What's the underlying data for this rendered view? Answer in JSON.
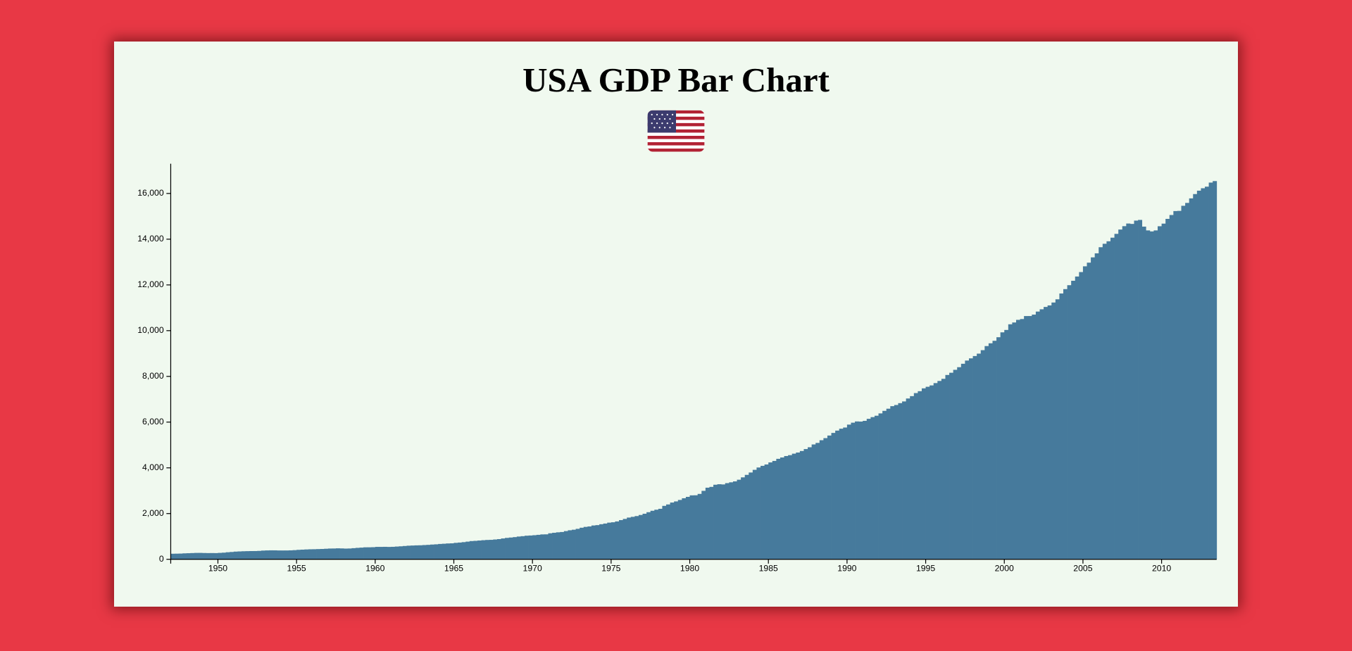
{
  "chart_data": {
    "type": "bar",
    "title": "USA GDP Bar Chart",
    "color": "#467a9c",
    "xlim": [
      1947,
      2013.5
    ],
    "xticks": [
      1950,
      1955,
      1960,
      1965,
      1970,
      1975,
      1980,
      1985,
      1990,
      1995,
      2000,
      2005,
      2010
    ],
    "ylim": [
      0,
      17300
    ],
    "yticks": [
      0,
      {
        "value": 2000,
        "label": "2,000"
      },
      {
        "value": 4000,
        "label": "4,000"
      },
      {
        "value": 6000,
        "label": "6,000"
      },
      {
        "value": 8000,
        "label": "8,000"
      },
      {
        "value": 10000,
        "label": "10,000"
      },
      {
        "value": 12000,
        "label": "12,000"
      },
      {
        "value": 14000,
        "label": "14,000"
      },
      {
        "value": 16000,
        "label": "16,000"
      }
    ],
    "x": [
      1947,
      1947.25,
      1947.5,
      1947.75,
      1948,
      1948.25,
      1948.5,
      1948.75,
      1949,
      1949.25,
      1949.5,
      1949.75,
      1950,
      1950.25,
      1950.5,
      1950.75,
      1951,
      1951.25,
      1951.5,
      1951.75,
      1952,
      1952.25,
      1952.5,
      1952.75,
      1953,
      1953.25,
      1953.5,
      1953.75,
      1954,
      1954.25,
      1954.5,
      1954.75,
      1955,
      1955.25,
      1955.5,
      1955.75,
      1956,
      1956.25,
      1956.5,
      1956.75,
      1957,
      1957.25,
      1957.5,
      1957.75,
      1958,
      1958.25,
      1958.5,
      1958.75,
      1959,
      1959.25,
      1959.5,
      1959.75,
      1960,
      1960.25,
      1960.5,
      1960.75,
      1961,
      1961.25,
      1961.5,
      1961.75,
      1962,
      1962.25,
      1962.5,
      1962.75,
      1963,
      1963.25,
      1963.5,
      1963.75,
      1964,
      1964.25,
      1964.5,
      1964.75,
      1965,
      1965.25,
      1965.5,
      1965.75,
      1966,
      1966.25,
      1966.5,
      1966.75,
      1967,
      1967.25,
      1967.5,
      1967.75,
      1968,
      1968.25,
      1968.5,
      1968.75,
      1969,
      1969.25,
      1969.5,
      1969.75,
      1970,
      1970.25,
      1970.5,
      1970.75,
      1971,
      1971.25,
      1971.5,
      1971.75,
      1972,
      1972.25,
      1972.5,
      1972.75,
      1973,
      1973.25,
      1973.5,
      1973.75,
      1974,
      1974.25,
      1974.5,
      1974.75,
      1975,
      1975.25,
      1975.5,
      1975.75,
      1976,
      1976.25,
      1976.5,
      1976.75,
      1977,
      1977.25,
      1977.5,
      1977.75,
      1978,
      1978.25,
      1978.5,
      1978.75,
      1979,
      1979.25,
      1979.5,
      1979.75,
      1980,
      1980.25,
      1980.5,
      1980.75,
      1981,
      1981.25,
      1981.5,
      1981.75,
      1982,
      1982.25,
      1982.5,
      1982.75,
      1983,
      1983.25,
      1983.5,
      1983.75,
      1984,
      1984.25,
      1984.5,
      1984.75,
      1985,
      1985.25,
      1985.5,
      1985.75,
      1986,
      1986.25,
      1986.5,
      1986.75,
      1987,
      1987.25,
      1987.5,
      1987.75,
      1988,
      1988.25,
      1988.5,
      1988.75,
      1989,
      1989.25,
      1989.5,
      1989.75,
      1990,
      1990.25,
      1990.5,
      1990.75,
      1991,
      1991.25,
      1991.5,
      1991.75,
      1992,
      1992.25,
      1992.5,
      1992.75,
      1993,
      1993.25,
      1993.5,
      1993.75,
      1994,
      1994.25,
      1994.5,
      1994.75,
      1995,
      1995.25,
      1995.5,
      1995.75,
      1996,
      1996.25,
      1996.5,
      1996.75,
      1997,
      1997.25,
      1997.5,
      1997.75,
      1998,
      1998.25,
      1998.5,
      1998.75,
      1999,
      1999.25,
      1999.5,
      1999.75,
      2000,
      2000.25,
      2000.5,
      2000.75,
      2001,
      2001.25,
      2001.5,
      2001.75,
      2002,
      2002.25,
      2002.5,
      2002.75,
      2003,
      2003.25,
      2003.5,
      2003.75,
      2004,
      2004.25,
      2004.5,
      2004.75,
      2005,
      2005.25,
      2005.5,
      2005.75,
      2006,
      2006.25,
      2006.5,
      2006.75,
      2007,
      2007.25,
      2007.5,
      2007.75,
      2008,
      2008.25,
      2008.5,
      2008.75,
      2009,
      2009.25,
      2009.5,
      2009.75,
      2010,
      2010.25,
      2010.5,
      2010.75,
      2011,
      2011.25,
      2011.5,
      2011.75,
      2012,
      2012.25,
      2012.5,
      2012.75,
      2013,
      2013.25
    ],
    "values": [
      243.1,
      246.3,
      250.1,
      260.3,
      266.2,
      272.9,
      279.5,
      280.7,
      275.4,
      271.7,
      273.3,
      271.0,
      281.2,
      290.7,
      308.5,
      320.3,
      336.4,
      344.5,
      351.8,
      356.6,
      360.2,
      361.4,
      368.1,
      381.2,
      388.5,
      392.3,
      391.7,
      386.5,
      385.9,
      386.7,
      391.6,
      400.3,
      413.8,
      422.2,
      430.9,
      437.8,
      440.5,
      446.8,
      452.0,
      461.3,
      470.6,
      472.8,
      480.3,
      475.7,
      468.4,
      472.8,
      486.7,
      500.4,
      511.1,
      524.2,
      525.2,
      529.3,
      543.3,
      542.7,
      546.0,
      541.1,
      545.9,
      557.4,
      568.2,
      581.6,
      595.2,
      602.6,
      609.6,
      613.1,
      622.7,
      631.8,
      645.0,
      654.8,
      671.1,
      680.8,
      692.8,
      698.4,
      719.2,
      732.4,
      750.2,
      773.1,
      797.3,
      807.2,
      820.8,
      834.9,
      846.0,
      851.1,
      866.6,
      883.2,
      911.1,
      936.3,
      952.3,
      970.1,
      995.4,
      1011.4,
      1032.0,
      1040.7,
      1053.5,
      1070.1,
      1088.5,
      1091.5,
      1137.8,
      1159.4,
      1180.3,
      1193.6,
      1233.8,
      1270.1,
      1293.8,
      1332.0,
      1380.7,
      1417.6,
      1436.8,
      1479.1,
      1494.7,
      1534.2,
      1563.4,
      1603.0,
      1619.6,
      1656.4,
      1713.8,
      1765.9,
      1824.5,
      1856.9,
      1890.5,
      1938.4,
      1992.5,
      2060.2,
      2122.4,
      2168.7,
      2208.7,
      2336.6,
      2398.9,
      2482.2,
      2531.6,
      2595.9,
      2670.4,
      2730.7,
      2796.5,
      2799.9,
      2860.0,
      2993.5,
      3131.8,
      3167.3,
      3261.2,
      3283.5,
      3273.8,
      3331.3,
      3367.1,
      3407.8,
      3480.3,
      3583.8,
      3692.3,
      3796.1,
      3912.8,
      4015.0,
      4087.4,
      4147.6,
      4237.0,
      4302.3,
      4394.6,
      4453.1,
      4516.3,
      4555.2,
      4619.6,
      4669.4,
      4736.2,
      4821.5,
      4900.5,
      5022.7,
      5090.6,
      5207.7,
      5299.5,
      5412.7,
      5527.4,
      5628.4,
      5711.6,
      5763.4,
      5890.8,
      5974.7,
      6029.5,
      6023.3,
      6054.9,
      6143.6,
      6218.4,
      6279.3,
      6380.8,
      6492.3,
      6586.5,
      6697.6,
      6748.2,
      6829.6,
      6904.2,
      7032.8,
      7136.3,
      7269.8,
      7352.3,
      7476.7,
      7545.3,
      7604.9,
      7706.5,
      7799.5,
      7893.1,
      8061.5,
      8159.0,
      8287.1,
      8402.1,
      8551.9,
      8691.8,
      8788.3,
      8889.7,
      8994.7,
      9146.5,
      9325.7,
      9447.1,
      9557.0,
      9712.3,
      9926.1,
      10031.0,
      10278.3,
      10357.4,
      10472.3,
      10508.1,
      10638.4,
      10639.5,
      10701.3,
      10834.4,
      10934.8,
      11037.1,
      11103.8,
      11230.1,
      11370.7,
      11625.1,
      11816.8,
      11988.4,
      12181.4,
      12367.7,
      12562.2,
      12813.7,
      12974.1,
      13205.4,
      13381.6,
      13648.9,
      13799.8,
      13908.5,
      14066.4,
      14233.2,
      14422.3,
      14569.7,
      14685.3,
      14668.4,
      14813.0,
      14843.0,
      14549.9,
      14383.9,
      14340.4,
      14384.1,
      14566.5,
      14681.1,
      14888.6,
      15057.7,
      15230.2,
      15238.4,
      15460.9,
      15587.1,
      15785.3,
      15973.9,
      16121.9,
      16227.9,
      16297.3,
      16475.4,
      16541.4
    ]
  }
}
